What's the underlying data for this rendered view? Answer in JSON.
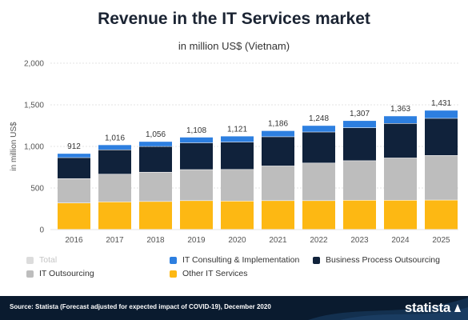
{
  "title": "Revenue in the IT Services market",
  "subtitle": "in million US$ (Vietnam)",
  "source": "Source: Statista (Forecast adjusted for expected impact of COVID-19), December 2020",
  "brand": "statista",
  "chart_data": {
    "type": "bar",
    "stacked": true,
    "ylabel": "in million US$",
    "ylim": [
      0,
      2000
    ],
    "yticks": [
      0,
      500,
      1000,
      1500,
      2000
    ],
    "ytick_labels": [
      "0",
      "500",
      "1,000",
      "1,500",
      "2,000"
    ],
    "grid": true,
    "categories": [
      "2016",
      "2017",
      "2018",
      "2019",
      "2020",
      "2021",
      "2022",
      "2023",
      "2024",
      "2025"
    ],
    "totals": [
      912,
      1016,
      1056,
      1108,
      1121,
      1186,
      1248,
      1307,
      1363,
      1431
    ],
    "total_labels": [
      "912",
      "1,016",
      "1,056",
      "1,108",
      "1,121",
      "1,186",
      "1,248",
      "1,307",
      "1,363",
      "1,431"
    ],
    "series": [
      {
        "name": "Other IT Services",
        "color": "#fdb813",
        "values": [
          317,
          330,
          335,
          345,
          340,
          345,
          345,
          350,
          350,
          352
        ]
      },
      {
        "name": "IT Outsourcing",
        "color": "#bdbdbd",
        "values": [
          293,
          333,
          352,
          373,
          380,
          417,
          452,
          475,
          508,
          536
        ]
      },
      {
        "name": "Business Process Outsourcing",
        "color": "#10223b",
        "values": [
          252,
          293,
          309,
          322,
          329,
          351,
          373,
          396,
          415,
          446
        ]
      },
      {
        "name": "IT Consulting & Implementation",
        "color": "#2d7fe0",
        "values": [
          50,
          60,
          60,
          68,
          72,
          73,
          78,
          86,
          90,
          97
        ]
      }
    ],
    "legend": [
      {
        "name": "Total",
        "color": "#dcdcdc",
        "faded": true
      },
      {
        "name": "IT Consulting & Implementation",
        "color": "#2d7fe0",
        "faded": false
      },
      {
        "name": "Business Process Outsourcing",
        "color": "#10223b",
        "faded": false
      },
      {
        "name": "IT Outsourcing",
        "color": "#bdbdbd",
        "faded": false
      },
      {
        "name": "Other IT Services",
        "color": "#fdb813",
        "faded": false
      }
    ],
    "legend_position": "bottom"
  }
}
